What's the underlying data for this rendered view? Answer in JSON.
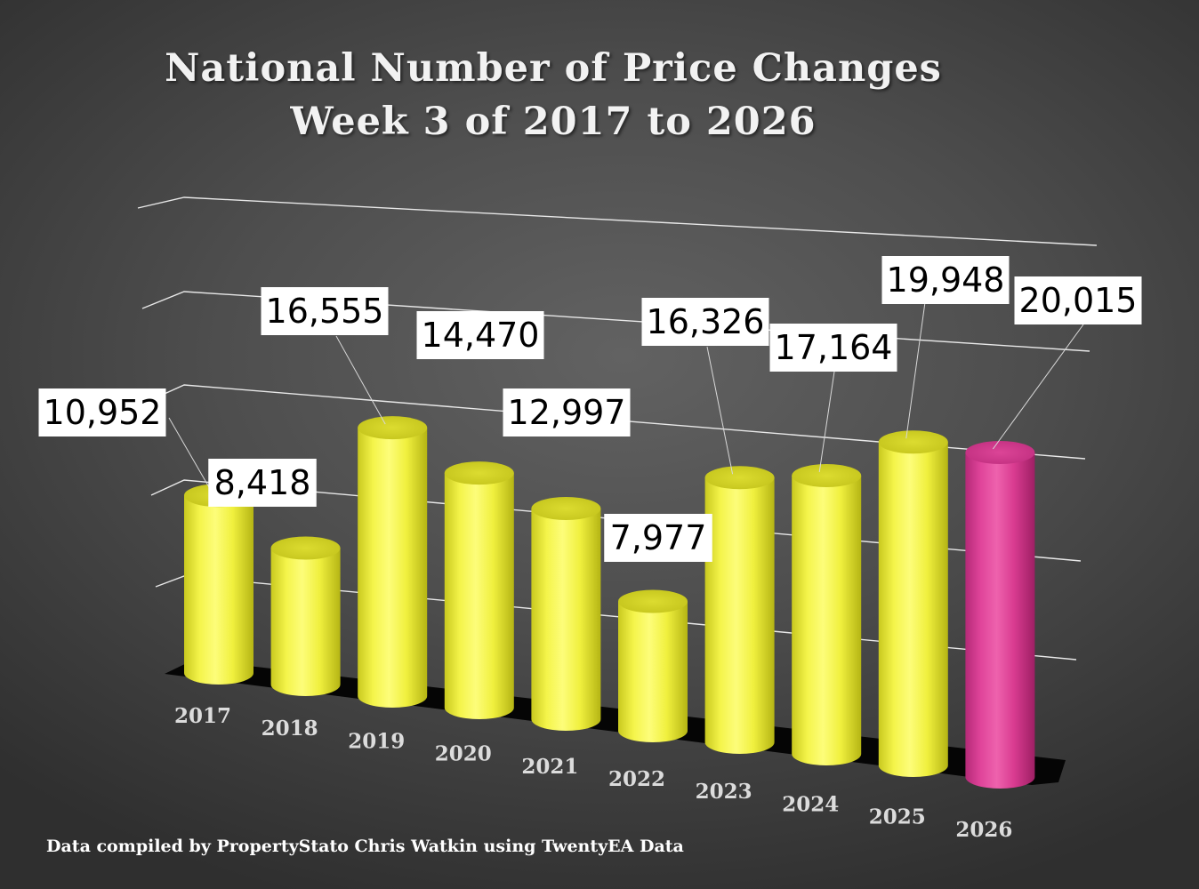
{
  "chart_data": {
    "type": "bar",
    "title": "National Number of Price Changes",
    "subtitle": "Week 3 of 2017 to 2026",
    "categories": [
      "2017",
      "2018",
      "2019",
      "2020",
      "2021",
      "2022",
      "2023",
      "2024",
      "2025",
      "2026"
    ],
    "values": [
      10952,
      8418,
      16555,
      14470,
      12997,
      7977,
      16326,
      17164,
      19948,
      20015
    ],
    "value_labels": [
      "10,952",
      "8,418",
      "16,555",
      "14,470",
      "12,997",
      "7,977",
      "16,326",
      "17,164",
      "19,948",
      "20,015"
    ],
    "ylim": [
      0,
      25000
    ],
    "grid": true,
    "legend": "none",
    "colors": {
      "default_bar": "#f5f542",
      "highlight_bar": "#e0449a",
      "highlight_category": "2026"
    }
  },
  "footer": {
    "source": "Data compiled by PropertyStato Chris Watkin using TwentyEA Data"
  }
}
